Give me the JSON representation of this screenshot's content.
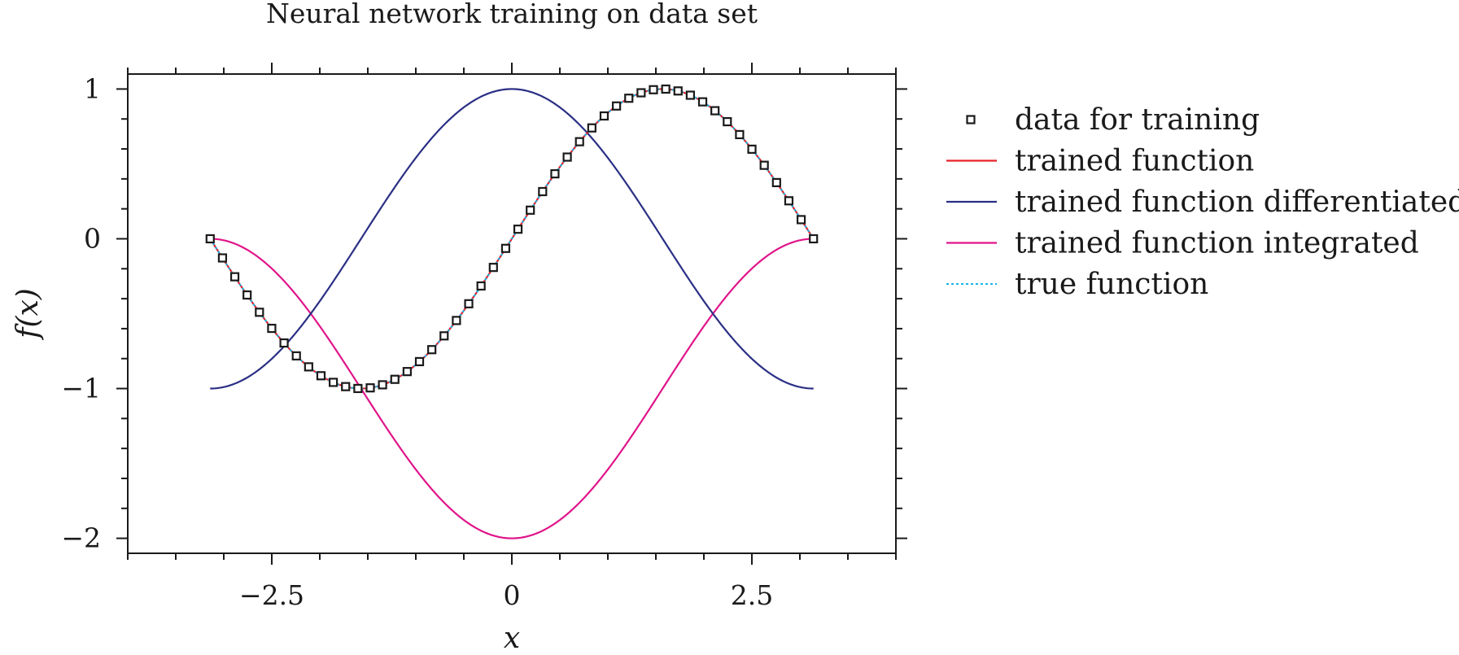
{
  "chart_data": {
    "type": "line",
    "title": "Neural network training on data set",
    "xlabel": "x",
    "ylabel": "f(x)",
    "xlim": [
      -4,
      4
    ],
    "ylim": [
      -2.1,
      1.1
    ],
    "x_ticks": [
      -2.5,
      0,
      2.5
    ],
    "x_tick_labels": [
      "−2.5",
      "0",
      "2.5"
    ],
    "y_ticks": [
      -2,
      -1,
      0,
      1
    ],
    "y_tick_labels": [
      "−2",
      "−1",
      "0",
      "1"
    ],
    "x_minor_step": 0.5,
    "y_minor_step": 0.2,
    "grid": false,
    "legend_position": "outside-right",
    "series": [
      {
        "name": "data for training",
        "style": "markers",
        "marker": "square",
        "color": "#1a1a1a",
        "x_range": [
          -3.14159,
          3.14159
        ],
        "n_points": 50,
        "function": "sin"
      },
      {
        "name": "trained function",
        "style": "solid",
        "color": "#e8222b",
        "x_range": [
          -3.14159,
          3.14159
        ],
        "function": "sin"
      },
      {
        "name": "trained function differentiated",
        "style": "solid",
        "color": "#2a2f85",
        "x_range": [
          -3.14159,
          3.14159
        ],
        "function": "cos"
      },
      {
        "name": "trained function integrated",
        "style": "solid",
        "color": "#e0158a",
        "x_range": [
          -3.14159,
          3.14159
        ],
        "function": "-1-cos"
      },
      {
        "name": "true function",
        "style": "dotted",
        "color": "#18b4e6",
        "x_range": [
          -3.14159,
          3.14159
        ],
        "function": "sin"
      }
    ]
  }
}
